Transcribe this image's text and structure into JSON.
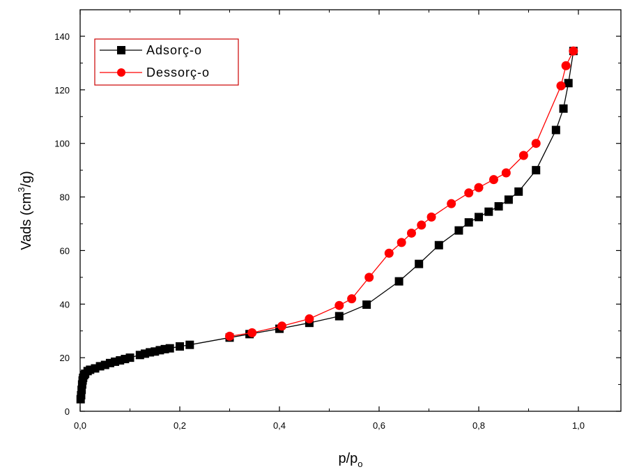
{
  "chart_data": {
    "type": "line",
    "xlabel_main": "p/p",
    "xlabel_sub": "o",
    "ylabel_main": "Vads (cm",
    "ylabel_sup": "3",
    "ylabel_end": "/g)",
    "xlim": [
      0,
      1.1
    ],
    "ylim": [
      0,
      147
    ],
    "x_ticks": [
      0,
      0.2,
      0.4,
      0.6,
      0.8,
      1.0
    ],
    "x_tick_labels": [
      "0,0",
      "0,2",
      "0,4",
      "0,6",
      "0,8",
      "1,0"
    ],
    "y_ticks": [
      0,
      20,
      40,
      60,
      80,
      100,
      120,
      140
    ],
    "y_tick_labels": [
      "0",
      "20",
      "40",
      "60",
      "80",
      "100",
      "120",
      "140"
    ],
    "legend_position": "top-left",
    "series": [
      {
        "name": "Adsorç‑o",
        "color": "#000000",
        "marker": "square",
        "points": [
          [
            0.001,
            4.5
          ],
          [
            0.002,
            6
          ],
          [
            0.003,
            8
          ],
          [
            0.004,
            10
          ],
          [
            0.005,
            11.5
          ],
          [
            0.006,
            12.5
          ],
          [
            0.008,
            13.5
          ],
          [
            0.01,
            14
          ],
          [
            0.015,
            15
          ],
          [
            0.02,
            15.5
          ],
          [
            0.03,
            16
          ],
          [
            0.04,
            16.8
          ],
          [
            0.05,
            17.3
          ],
          [
            0.06,
            18
          ],
          [
            0.07,
            18.5
          ],
          [
            0.08,
            19
          ],
          [
            0.09,
            19.5
          ],
          [
            0.1,
            20
          ],
          [
            0.12,
            21
          ],
          [
            0.13,
            21.5
          ],
          [
            0.14,
            22
          ],
          [
            0.15,
            22.3
          ],
          [
            0.16,
            22.8
          ],
          [
            0.17,
            23.2
          ],
          [
            0.18,
            23.5
          ],
          [
            0.2,
            24.2
          ],
          [
            0.22,
            24.8
          ],
          [
            0.3,
            27.5
          ],
          [
            0.34,
            28.8
          ],
          [
            0.4,
            30.8
          ],
          [
            0.46,
            33
          ],
          [
            0.52,
            35.5
          ],
          [
            0.575,
            39.8
          ],
          [
            0.64,
            48.5
          ],
          [
            0.68,
            55
          ],
          [
            0.72,
            62
          ],
          [
            0.76,
            67.5
          ],
          [
            0.78,
            70.5
          ],
          [
            0.8,
            72.5
          ],
          [
            0.82,
            74.5
          ],
          [
            0.84,
            76.5
          ],
          [
            0.86,
            79
          ],
          [
            0.88,
            82
          ],
          [
            0.915,
            90
          ],
          [
            0.955,
            105
          ],
          [
            0.97,
            113
          ],
          [
            0.98,
            122.5
          ],
          [
            0.99,
            134.5
          ]
        ]
      },
      {
        "name": "Dessorç‑o",
        "color": "#ff0000",
        "marker": "circle",
        "points": [
          [
            0.3,
            28
          ],
          [
            0.345,
            29.3
          ],
          [
            0.405,
            31.8
          ],
          [
            0.46,
            34.5
          ],
          [
            0.52,
            39.5
          ],
          [
            0.545,
            42
          ],
          [
            0.58,
            50
          ],
          [
            0.62,
            59
          ],
          [
            0.645,
            63
          ],
          [
            0.665,
            66.5
          ],
          [
            0.685,
            69.5
          ],
          [
            0.705,
            72.5
          ],
          [
            0.745,
            77.5
          ],
          [
            0.78,
            81.5
          ],
          [
            0.8,
            83.5
          ],
          [
            0.83,
            86.5
          ],
          [
            0.855,
            89
          ],
          [
            0.89,
            95.5
          ],
          [
            0.915,
            100
          ],
          [
            0.965,
            121.5
          ],
          [
            0.975,
            129
          ],
          [
            0.99,
            134.5
          ]
        ]
      }
    ]
  }
}
